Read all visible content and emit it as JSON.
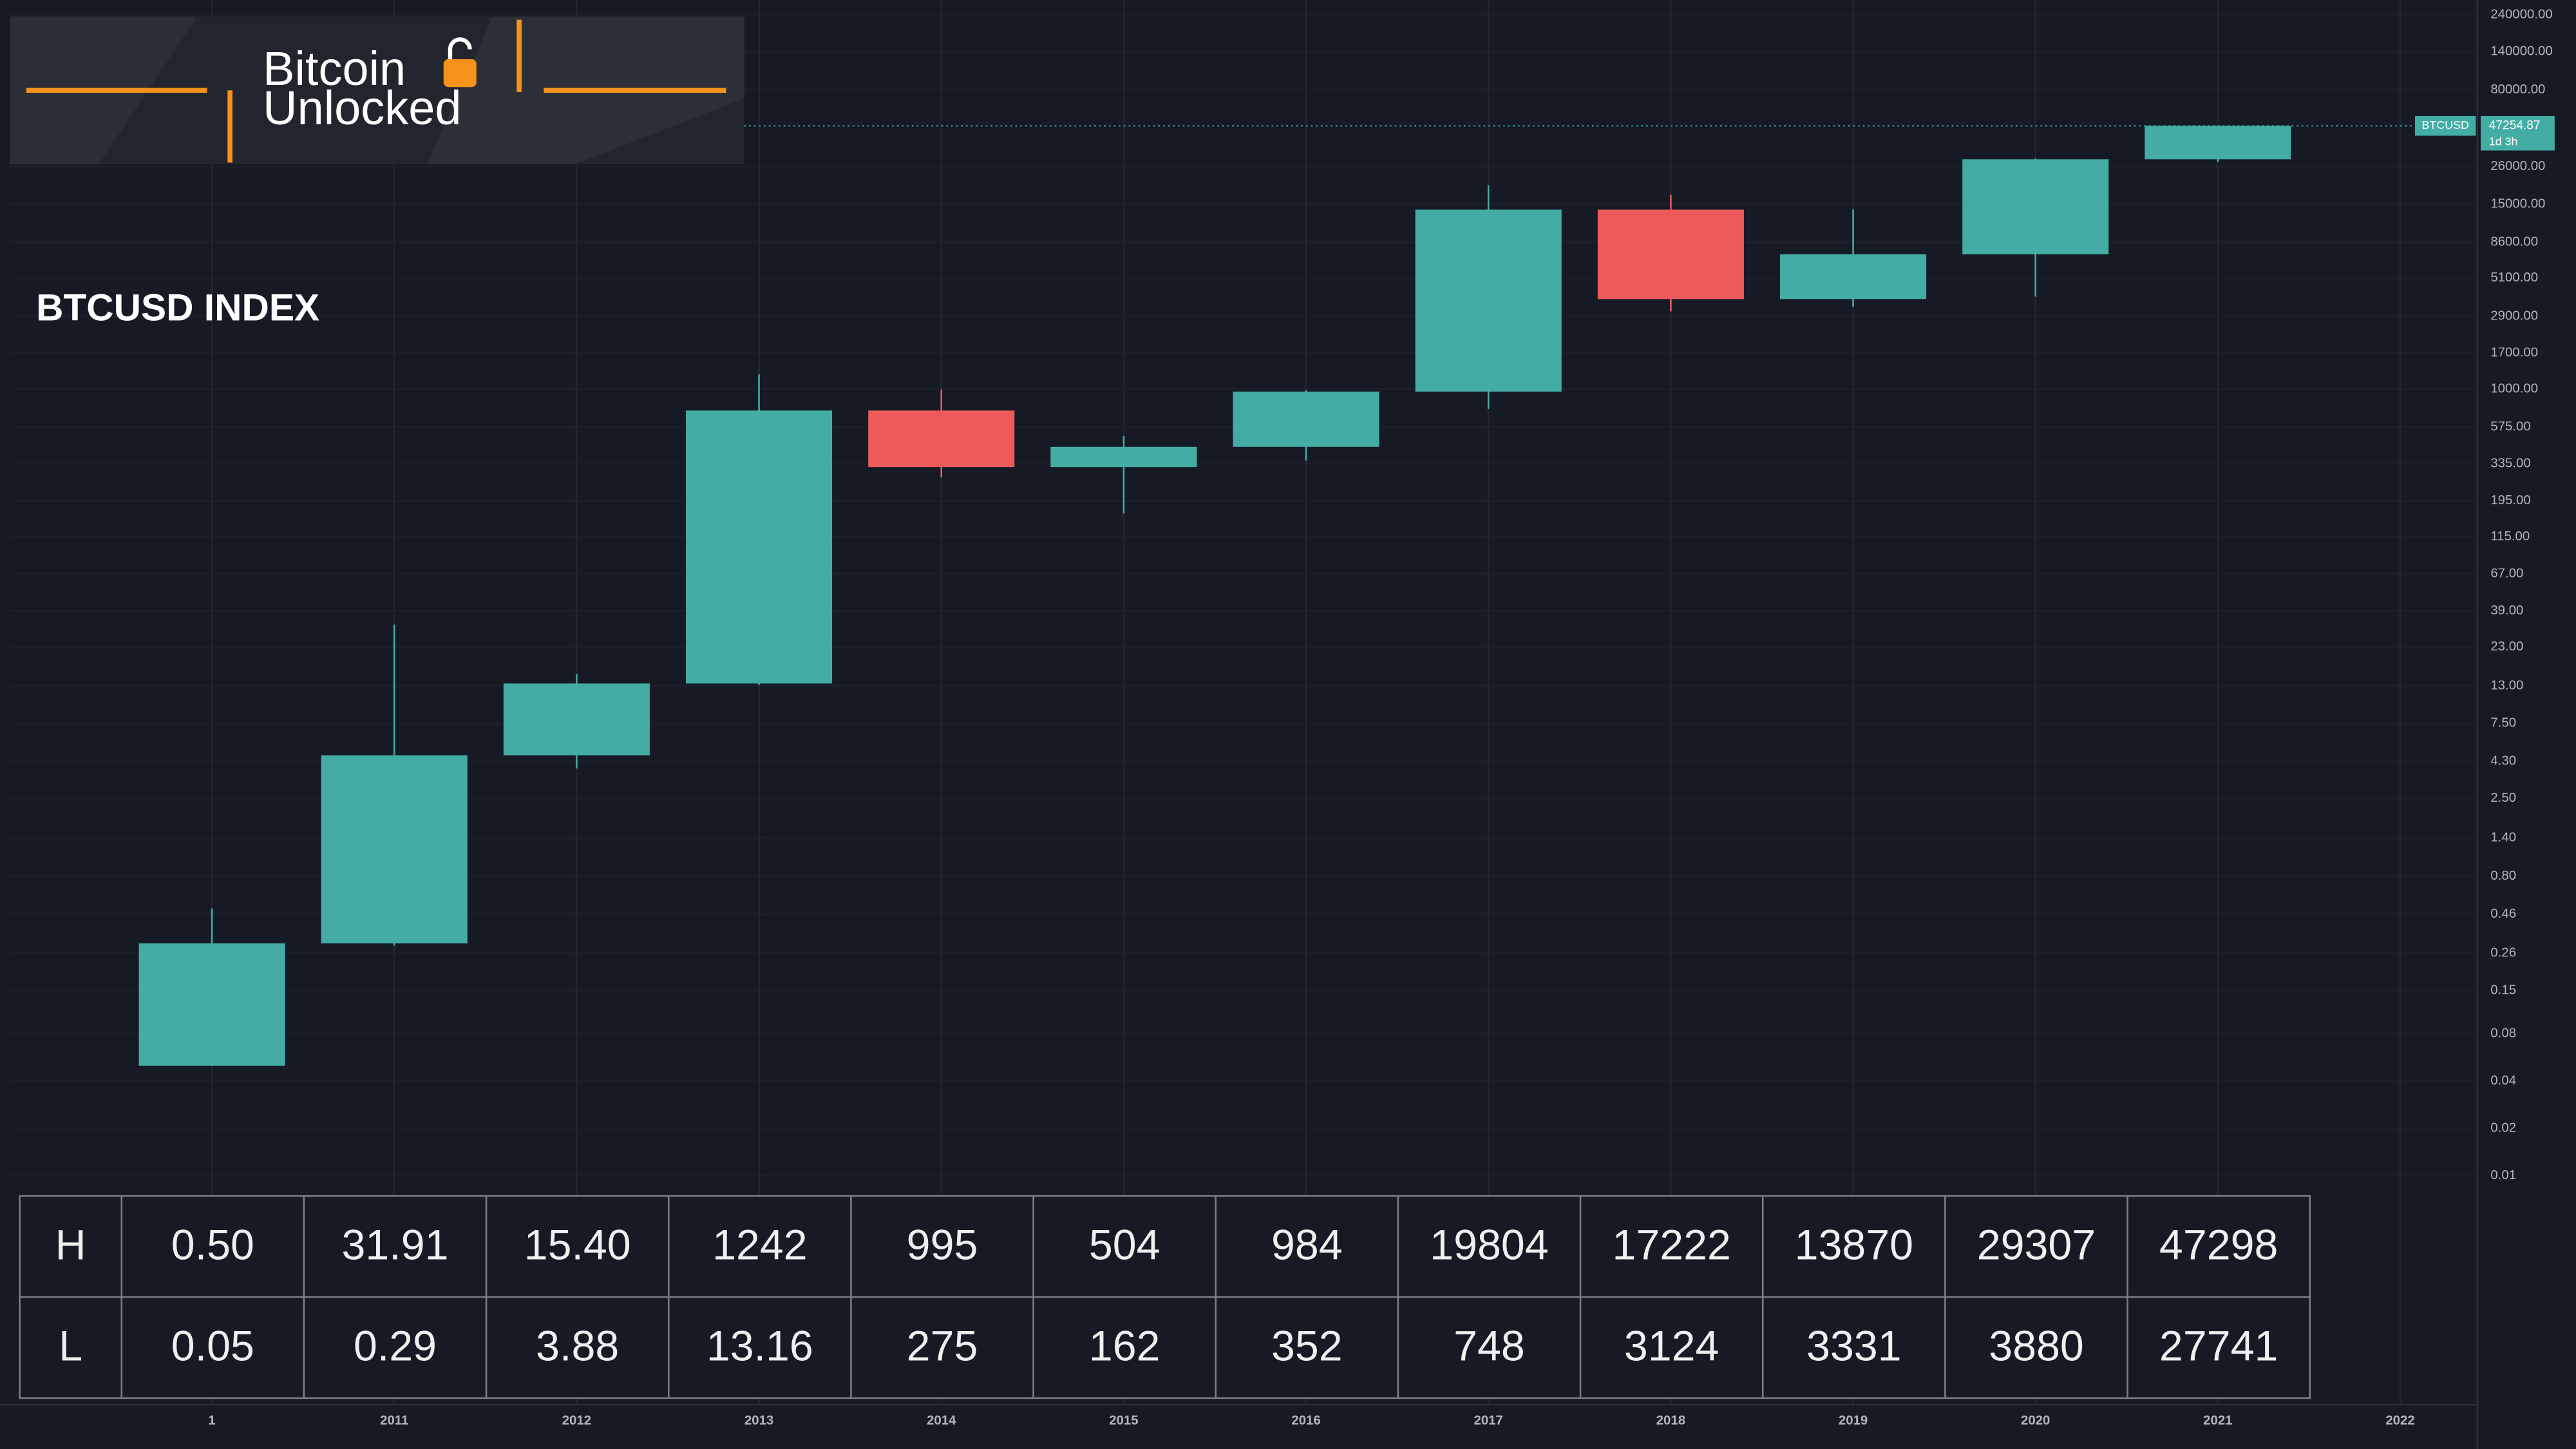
{
  "chart_data": {
    "type": "candlestick",
    "title": "BTCUSD INDEX",
    "logo": {
      "line1": "Bitcoin",
      "line2": "Unlocked"
    },
    "categories": [
      "1",
      "2011",
      "2012",
      "2013",
      "2014",
      "2015",
      "2016",
      "2017",
      "2018",
      "2019",
      "2020",
      "2021",
      "2022"
    ],
    "open": [
      0.05,
      0.3,
      4.7,
      13.45,
      732,
      320,
      430,
      964,
      13850,
      3740,
      7200,
      28950,
      null
    ],
    "high": [
      0.5,
      31.91,
      15.4,
      1242,
      995,
      504,
      984,
      19804,
      17222,
      13870,
      29307,
      47298,
      null
    ],
    "low": [
      0.05,
      0.29,
      3.88,
      13.16,
      275,
      162,
      352,
      748,
      3124,
      3331,
      3880,
      27741,
      null
    ],
    "close": [
      0.3,
      4.7,
      13.45,
      732,
      320,
      430,
      964,
      13850,
      3740,
      7200,
      28950,
      47254.87,
      null
    ],
    "up_color": "#43ada3",
    "down_color": "#ec5b5a",
    "log_scale": true,
    "grid": true,
    "ylim": [
      0.00035,
      298000
    ],
    "yticks": [
      {
        "value": 240000,
        "label": "240000.00"
      },
      {
        "value": 140000,
        "label": "140000.00"
      },
      {
        "value": 80000,
        "label": "80000.00"
      },
      {
        "value": 26000,
        "label": "26000.00"
      },
      {
        "value": 15000,
        "label": "15000.00"
      },
      {
        "value": 8600,
        "label": "8600.00"
      },
      {
        "value": 5100,
        "label": "5100.00"
      },
      {
        "value": 2900,
        "label": "2900.00"
      },
      {
        "value": 1700,
        "label": "1700.00"
      },
      {
        "value": 1000,
        "label": "1000.00"
      },
      {
        "value": 575,
        "label": "575.00"
      },
      {
        "value": 335,
        "label": "335.00"
      },
      {
        "value": 195,
        "label": "195.00"
      },
      {
        "value": 115,
        "label": "115.00"
      },
      {
        "value": 67,
        "label": "67.00"
      },
      {
        "value": 39,
        "label": "39.00"
      },
      {
        "value": 23,
        "label": "23.00"
      },
      {
        "value": 13,
        "label": "13.00"
      },
      {
        "value": 7.5,
        "label": "7.50"
      },
      {
        "value": 4.3,
        "label": "4.30"
      },
      {
        "value": 2.5,
        "label": "2.50"
      },
      {
        "value": 1.4,
        "label": "1.40"
      },
      {
        "value": 0.8,
        "label": "0.80"
      },
      {
        "value": 0.46,
        "label": "0.46"
      },
      {
        "value": 0.26,
        "label": "0.26"
      },
      {
        "value": 0.15,
        "label": "0.15"
      },
      {
        "value": 0.08,
        "label": "0.08"
      },
      {
        "value": 0.04,
        "label": "0.04"
      },
      {
        "value": 0.02,
        "label": "0.02"
      },
      {
        "value": 0.01,
        "label": "0.01"
      }
    ],
    "symbol": "BTCUSD",
    "last_price": 47254.87,
    "countdown": "1d 3h",
    "table_row_labels": [
      "H",
      "L"
    ],
    "high_labels": [
      "0.50",
      "31.91",
      "15.40",
      "1242",
      "995",
      "504",
      "984",
      "19804",
      "17222",
      "13870",
      "29307",
      "47298"
    ],
    "low_labels": [
      "0.05",
      "0.29",
      "3.88",
      "13.16",
      "275",
      "162",
      "352",
      "748",
      "3124",
      "3331",
      "3880",
      "27741"
    ]
  }
}
